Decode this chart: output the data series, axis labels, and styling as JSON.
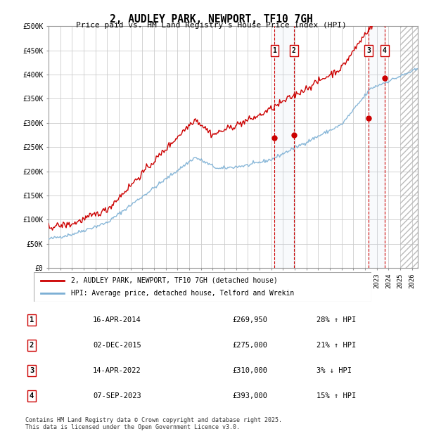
{
  "title": "2, AUDLEY PARK, NEWPORT, TF10 7GH",
  "subtitle": "Price paid vs. HM Land Registry's House Price Index (HPI)",
  "ylim": [
    0,
    500000
  ],
  "yticks": [
    0,
    50000,
    100000,
    150000,
    200000,
    250000,
    300000,
    350000,
    400000,
    450000,
    500000
  ],
  "xlim_start": 1995.0,
  "xlim_end": 2026.5,
  "hpi_color": "#7bafd4",
  "price_color": "#cc0000",
  "grid_color": "#cccccc",
  "background_color": "#ffffff",
  "sale_events": [
    {
      "num": 1,
      "date_x": 2014.29,
      "price": 269950,
      "label": "1"
    },
    {
      "num": 2,
      "date_x": 2015.92,
      "price": 275000,
      "label": "2"
    },
    {
      "num": 3,
      "date_x": 2022.29,
      "price": 310000,
      "label": "3"
    },
    {
      "num": 4,
      "date_x": 2023.68,
      "price": 393000,
      "label": "4"
    }
  ],
  "legend_entries": [
    {
      "label": "2, AUDLEY PARK, NEWPORT, TF10 7GH (detached house)",
      "color": "#cc0000"
    },
    {
      "label": "HPI: Average price, detached house, Telford and Wrekin",
      "color": "#7bafd4"
    }
  ],
  "table_rows": [
    {
      "num": "1",
      "date": "16-APR-2014",
      "price": "£269,950",
      "hpi": "28% ↑ HPI"
    },
    {
      "num": "2",
      "date": "02-DEC-2015",
      "price": "£275,000",
      "hpi": "21% ↑ HPI"
    },
    {
      "num": "3",
      "date": "14-APR-2022",
      "price": "£310,000",
      "hpi": "3% ↓ HPI"
    },
    {
      "num": "4",
      "date": "07-SEP-2023",
      "price": "£393,000",
      "hpi": "15% ↑ HPI"
    }
  ],
  "footnote": "Contains HM Land Registry data © Crown copyright and database right 2025.\nThis data is licensed under the Open Government Licence v3.0.",
  "hatch_start": 2025.0
}
